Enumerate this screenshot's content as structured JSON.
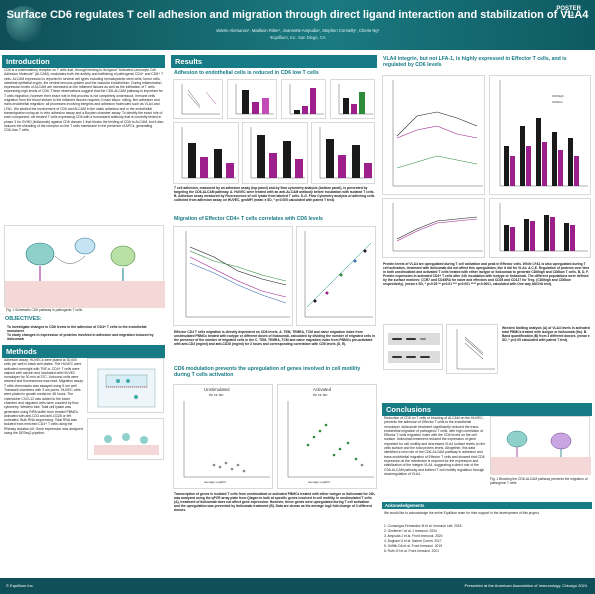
{
  "header": {
    "title": "Surface CD6 regulates T cell adhesion and migration through direct ligand interaction and stabilization of VLA4",
    "authors": "Valerie Alemanov¹, Madison Ritter¹, Jeannette Ampudia¹, Stephen Connelly¹, Cherie Ng¹",
    "affiliation": "¹Equillium, Inc. San Diego, CA",
    "poster_label": "POSTER",
    "poster_number": "713"
  },
  "sections": {
    "introduction": "Introduction",
    "objectives": "OBJECTIVES:",
    "methods": "Methods",
    "results": "Results",
    "conclusions": "Conclusions",
    "acknowledgements": "Acknowledgements"
  },
  "intro": {
    "text": "CD6 is a costimulatory receptor on T cells that, through binding to its ligand \"Activated Leukocyte Cell Adhesion Molecule\" (ALCAM), modulates both the activity and trafficking of pathogenic CD4+ and CD8+ T cells. ALCAM expression is reported in several cell types including hematopoietic stem cells, tumor cells, intestinal epithelial crypts, the central nervous system and the vascular endothelium. During inflammation, expression levels of ALCAM are increased on the inflamed tissues as well as the infiltration of T cells expressing high levels of CD6. These observations suggest that the CD6-ALCAM pathway is important for T cells migration, however their exact role in this process is not completely understood. Immune cells migration from the blood stream to the inflamed tissues requires 3 main steps: rolling, firm adhesion and trans-endothelial migration; all processes involving integrins and adhesion molecules such as VLA4 and LFA1. We studied the involvement of CD6 and ALCAM in the static adhesion and in the endothelial transmigration using an in vitro adhesion assay and a Boyden chamber assay. To identify the exact role of each component, we treated T cells expressing CD6 with a humanized antibody that is currently tested in phase 3 for GVHD (itolizumab) against CD6 domain 1 that blocks the binding of CD6 to ALCAM, but it also induces the shedding of the receptor on the T cells membrane in the presence of APCs, generating CD6-/low T cells.",
    "fig_caption": "Fig. 1 Schematic CD6 pathway in pathogenic T cells"
  },
  "objectives": {
    "items": [
      "To investigate changes in CD6 levels in the adhesion of CD4+ T cells to the endothelial monolayer",
      "To study changes in expression of proteins involved in adhesion and migration induced by itolizumab"
    ]
  },
  "methods": {
    "text": "Adhesion assay: HUVECs were plated at 30,000 cells per well in black well plates. The HUVEC were activated overnight with TNF-a. CD4+ T cells were stained with calcein and incubated with HUVEC monolayer for 30 min at 37C. Unbound cells were washed and fluorescence was read. Migration assay: T cells chemotaxis was assayed using 5 um well Transwell chambers with 3 um pores. HUVEC cells were plated in growth media for 48 hours. The chemokine CXCL12 was added to the lower chamber and migrated cells were counted by flow cytometry. Western blot: Total cell lysate was generated using RIPA buffer from treated PBMCs activated with anti-CD3 and anti-CD28 or left untreated. Bulk RNA sequencing: Total RNA was isolated from enriched CD4+ T cells using the RNeasy isolation kit. Gene expression was analyzed using the DESeq2 pipeline."
  },
  "results": {
    "sub1": "Adhesion to endothelial cells is reduced in CD6 low T cells",
    "caption1": "T cell adhesion, measured by an adhesion assay (top panel) and by flow cytometry analysis (bottom panel), is prevented by targeting the CD6-ALCAM pathway. A. HUVEC were treated with an anti-ALCAM antibody before incubation with isolated T cells. B. Adhesion assay measured by Fluorescence of cell lysate from labeled T cells. D-G. Flow Cytometry analysis of adhering cells collected from adhesion assay on HUVEC, geoMFI (mean ± SD, * p<0.005 calculated with paired T test).",
    "sub2": "Migration of Effector CD4+ T cells correlates with CD6 levels",
    "caption2": "Effector CD4 T cells migration is directly dependent on CD6 levels. A. TEM, TEMRA, TCM and naive migration index from unstimulated PBMCs treated with isotype or different doses of itolizumab, calculated by dividing the number of migrated cells in the presence of the number of migrated cells in the C. TEM, TEMRA, TCM and naive migration index from PBMCs pre-activated with anti-CD3 (mg/ml) and anti-CD28 (mg/ml) for 3 hours and corresponding correlation with CD6 levels (D, E).",
    "sub3": "CD6 modulation prevents the upregulation of genes involved in cell motility during T cells activation",
    "volcano_left_title": "Unstimulated",
    "volcano_left_sub": "Ito vs Iso",
    "volcano_right_title": "Activated",
    "volcano_right_sub": "Ito vs Iso",
    "volcano_xlabel": "average Log2FC",
    "caption3": "Transcription of genes in isolated T cells from unstimulated or activated PBMCs treated with either isotype or itolizumab for 24h, was analyzed using the qPCR array plate from Qiagen in bulk at specific genes involved in cell motility. In unstimulated T cells (A), treatment of itolizumab does not affect gene expression. However, these genes were upregulated during T cell activation and the upregulation was prevented by itolizumab treatment (B). Data are shown as the average log2 fold change of 3 different donors.",
    "sub4": "VLA4 integrin, but not LFA-1, is highly expressed in Effector T cells, and is regulated by CD6 levels",
    "caption4": "Protein levels of VLA4 are upregulated during T cell activation and peak in Effector cells. While LFA1 is also upregulated during T cell activation, treatment with itolizumab did not affect this upregulation, like it did for VLA4. A,C,E. Regulation of proteins over time in both unstimulated and activated T cells treated with either isotype or itolizumab to generate CD6high and CD6low T cells. B, D, F. Protein expression in activated CD4+ T cells after 24h incubation with isotype or itolizumab. The different populations were defined by the surface markers: CCR7 and CD45RA for naive and effectors and CD25 and CD127 for Treg. (CD6high and CD6low respectively). (mean ± SD, * p<0.05 ** p<0.01 *** p<0.001 **** p<0.0001, calculated with One way ANOVA test).",
    "wb_caption": "Western blotting analysis (A) of VLA4 levels in activated total PBMCs treated with isotype or itolizumab (Ito). B. Band quantification (B) from 3 different donors. (mean ± SD, * p<0.05 calculated with paired T test).",
    "legend_high": "CD6high",
    "legend_low": "CD6low",
    "legend_neg": "CD6neg",
    "vla4_ylabel": "VLA4 (CD49d) MFI"
  },
  "conclusions": {
    "text": "Reduction of CD6 on T cells or blocking of ALCAM on the HUVEC, prevents the adhesion of Effector T cells to the endothelial monolayer. Itolizumab treatment significantly reduced the trans-endothelial migration of pathogenic T cells, with high correlation of Effector T cells migration index with the CD6 levels on the cell surface. Itolizumab treatment reduced the expression of gene important for cell motility and decreased VLA4 surface levels on the cells surface and the total protein levels. Altogether, this data identified a new role of the CD6-ALCAM pathway in adhesion and trans-endothelial migration of Effector T cells and showed that CD6 expression at the membrane is required for the expression and stabilization of the integrin VLA4, suggesting a direct role of the CD6-ALCAM pathway and indirect T cell motility regulation through downregulation of VLA4.",
    "fig_caption": "Fig. 1 Blocking the CD6-ALCAM pathway prevents the migration of pathogenic T cells"
  },
  "acknowledgements": {
    "text": "We would like to acknowledge the entire Equillium team for their support in the development of this project.",
    "refs": [
      "1. Consuegra-Fernandez M et al. Immunol Lett. 2018",
      "2. Gimferrer I et al. J Immunol. 2004",
      "3. Ampudia J et al. Front Immunol. 2020",
      "4. Bughani U et al. Nature Comm. 2017",
      "5. Griffith DA et al. Front Immunol. 2019",
      "6. Ruth JH et al. Front Immunol. 2021"
    ]
  },
  "footer": {
    "left": "© Equillium Inc.",
    "right": "Presented at the American Association of Immunology, Chicago 2024"
  },
  "colors": {
    "brand": "#167b84",
    "header_dark": "#0f4f57",
    "cd6high": "#1a1a1a",
    "cd6low": "#9c1f8c",
    "accent_green": "#2e8b3a"
  }
}
